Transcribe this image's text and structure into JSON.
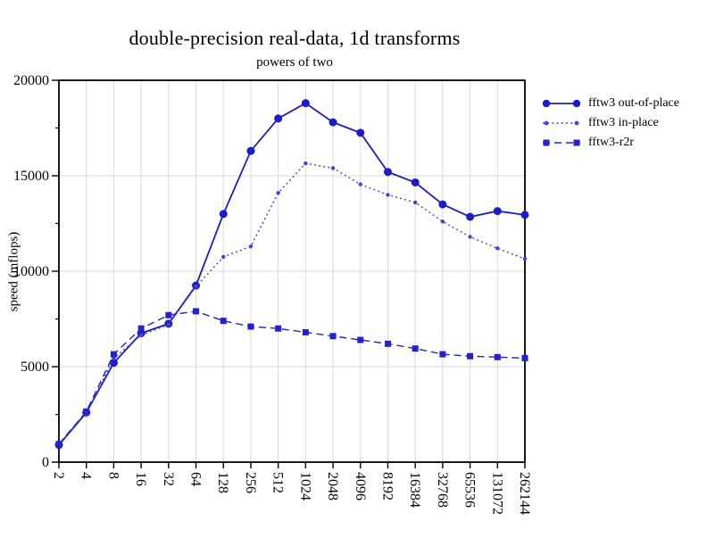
{
  "title": "double-precision real-data, 1d transforms",
  "subtitle": "powers of two",
  "y_axis_title": "speed (mflops)",
  "colors": {
    "background": "#ffffff",
    "text": "#000000",
    "frame": "#000000",
    "grid": "#d9d9d9",
    "solid_series": "#1c1ccd",
    "dotted_series": "#4343d8",
    "dashed_series": "#2222cf"
  },
  "chart_data": {
    "type": "line",
    "x_scale": "log2",
    "title": "double-precision real-data, 1d transforms",
    "subtitle": "powers of two",
    "xlabel": "",
    "ylabel": "speed (mflops)",
    "categories": [
      2,
      4,
      8,
      16,
      32,
      64,
      128,
      256,
      512,
      1024,
      2048,
      4096,
      8192,
      16384,
      32768,
      65536,
      131072,
      262144
    ],
    "x_tick_labels": [
      "2",
      "4",
      "8",
      "16",
      "32",
      "64",
      "128",
      "256",
      "512",
      "1024",
      "2048",
      "4096",
      "8192",
      "16384",
      "32768",
      "65536",
      "131072",
      "262144"
    ],
    "series": [
      {
        "name": "fftw3 out-of-place",
        "line": "solid",
        "marker": "circle-large",
        "color": "#1c1ccd",
        "values": [
          900,
          2600,
          5200,
          6750,
          7250,
          9250,
          13000,
          16300,
          18000,
          18800,
          17800,
          17250,
          15200,
          14650,
          13500,
          12850,
          13150,
          12950
        ]
      },
      {
        "name": "fftw3 in-place",
        "line": "dotted",
        "marker": "circle-small",
        "color": "#4343d8",
        "values": [
          900,
          2550,
          5450,
          6650,
          7200,
          9200,
          10750,
          11300,
          14100,
          15650,
          15400,
          14550,
          14000,
          13600,
          12600,
          11800,
          11200,
          10650
        ]
      },
      {
        "name": "fftw3-r2r",
        "line": "dashed",
        "marker": "square",
        "color": "#2222cf",
        "values": [
          950,
          2650,
          5650,
          7000,
          7700,
          7900,
          7400,
          7100,
          7000,
          6800,
          6600,
          6400,
          6200,
          5950,
          5650,
          5550,
          5500,
          5450
        ]
      }
    ],
    "ylim": [
      0,
      20000
    ],
    "yticks_major": [
      0,
      5000,
      10000,
      15000,
      20000
    ],
    "yticks_minor": [
      2500,
      7500,
      12500,
      17500
    ],
    "grid": "major",
    "legend_position": "outside-top-right"
  }
}
